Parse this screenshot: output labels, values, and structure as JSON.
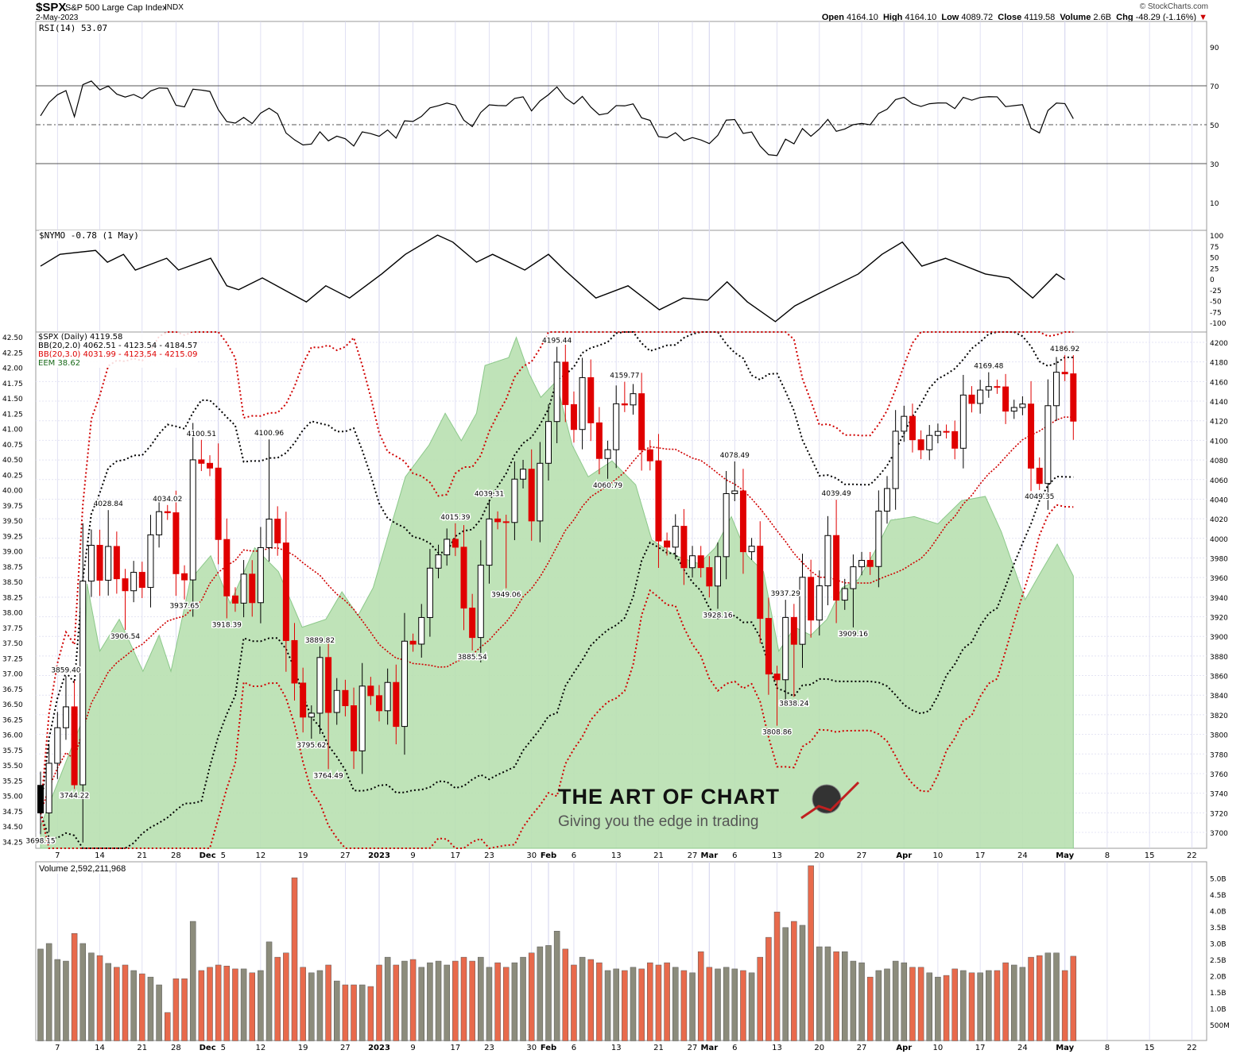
{
  "header": {
    "symbol": "$SPX",
    "name": "S&P 500 Large Cap Index",
    "exchange": "INDX",
    "date": "2-May-2023",
    "watermark": "© StockCharts.com",
    "open_label": "Open",
    "open": "4164.10",
    "high_label": "High",
    "high": "4164.10",
    "low_label": "Low",
    "low": "4089.72",
    "close_label": "Close",
    "close": "4119.58",
    "volume_label": "Volume",
    "volume": "2.6B",
    "chg_label": "Chg",
    "chg": "-48.29 (-1.16%)"
  },
  "colors": {
    "up": "#000000",
    "down": "#e00000",
    "bb2": "#000000",
    "bb3": "#d00000",
    "eem_fill": "#b8e0b0",
    "eem_line": "#8cc88a",
    "vol_up": "#8c8c7c",
    "vol_down": "#e86a4c",
    "grid": "#d8d8f0"
  },
  "logo": {
    "title": "THE ART OF CHART",
    "tagline": "Giving you the edge in trading"
  },
  "chart_data": [
    {
      "type": "line",
      "title": "RSI(14) 53.07",
      "ylim": [
        0,
        100
      ],
      "ticks": [
        90,
        70,
        50,
        30,
        10
      ],
      "period": 14
    },
    {
      "type": "line",
      "title": "$NYMO -0.78 (1 May)",
      "ylim": [
        -100,
        100
      ],
      "ticks": [
        100,
        75,
        50,
        25,
        0,
        -25,
        -50,
        -75,
        -100
      ],
      "points": [
        [
          0,
          29
        ],
        [
          2.3,
          56
        ],
        [
          6.5,
          65
        ],
        [
          7.9,
          38
        ],
        [
          9.8,
          56
        ],
        [
          11.2,
          20
        ],
        [
          14.9,
          47
        ],
        [
          16.3,
          20
        ],
        [
          20.1,
          47
        ],
        [
          22,
          -16
        ],
        [
          23.4,
          -25
        ],
        [
          26.2,
          2
        ],
        [
          31.4,
          -53
        ],
        [
          33.7,
          -16
        ],
        [
          36.5,
          -44
        ],
        [
          40.3,
          11
        ],
        [
          43.1,
          56
        ],
        [
          46.9,
          100
        ],
        [
          48.7,
          84
        ],
        [
          51.5,
          38
        ],
        [
          53.4,
          56
        ],
        [
          57.2,
          20
        ],
        [
          60,
          56
        ],
        [
          61.9,
          20
        ],
        [
          65.6,
          -44
        ],
        [
          69.4,
          -16
        ],
        [
          73.1,
          -71
        ],
        [
          75.9,
          -44
        ],
        [
          78.8,
          -49
        ],
        [
          81.1,
          -7
        ],
        [
          83.5,
          -53
        ],
        [
          86.8,
          -98
        ],
        [
          89.1,
          -62
        ],
        [
          91.9,
          -34
        ],
        [
          96.6,
          11
        ],
        [
          99.4,
          56
        ],
        [
          101.8,
          84
        ],
        [
          104.1,
          29
        ],
        [
          106.9,
          47
        ],
        [
          111.6,
          11
        ],
        [
          114.4,
          2
        ],
        [
          117.2,
          -44
        ],
        [
          120,
          11
        ],
        [
          121,
          -2
        ]
      ]
    },
    {
      "type": "candlestick",
      "title": "$SPX (Daily) 4119.58",
      "bb2_legend": "BB(20,2.0) 4062.51 - 4123.54 - 4184.57",
      "bb3_legend": "BB(20,3.0) 4031.99 - 4123.54 - 4215.09",
      "eem_legend": "EEM 38.62",
      "ylim": [
        3680,
        4210
      ],
      "price_ticks_step": 20,
      "eem_ticks": [
        42.5,
        42.25,
        42.0,
        41.75,
        41.5,
        41.25,
        41.0,
        40.75,
        40.5,
        40.25,
        40.0,
        39.75,
        39.5,
        39.25,
        39.0,
        38.75,
        38.5,
        38.25,
        38.0,
        37.75,
        37.5,
        37.25,
        37.0,
        36.75,
        36.5,
        36.25,
        36.0,
        35.75,
        35.5,
        35.25,
        35.0,
        34.75,
        34.5,
        34.25
      ],
      "closes": [
        3719.89,
        3770.55,
        3806.8,
        3828.11,
        3748.57,
        3956.37,
        3992.93,
        3957.25,
        3991.73,
        3958.79,
        3946.56,
        3965.34,
        3949.94,
        4003.58,
        4027.26,
        4026.12,
        3963.94,
        3957.63,
        4080.11,
        4076.57,
        4071.7,
        3998.84,
        3941.26,
        3933.92,
        3963.51,
        3934.38,
        3990.56,
        4019.65,
        3995.32,
        3895.75,
        3852.36,
        3817.66,
        3821.62,
        3878.44,
        3822.39,
        3844.82,
        3829.25,
        3783.22,
        3849.28,
        3839.5,
        3824.14,
        3852.97,
        3808.1,
        3895.08,
        3892.09,
        3919.25,
        3969.61,
        3983.17,
        3999.09,
        3990.97,
        3928.86,
        3898.85,
        3972.61,
        4019.81,
        4016.95,
        4016.22,
        4060.43,
        4070.56,
        4017.77,
        4076.6,
        4119.21,
        4179.76,
        4136.48,
        4111.08,
        4164.0,
        4117.86,
        4081.5,
        4090.46,
        4137.29,
        4136.13,
        4147.6,
        4090.41,
        4079.09,
        3997.34,
        3991.05,
        4012.32,
        3970.04,
        3982.24,
        3970.15,
        3951.39,
        3981.35,
        4045.64,
        4048.42,
        3986.37,
        3992.01,
        3918.32,
        3861.59,
        3855.76,
        3919.29,
        3891.93,
        3960.28,
        3916.64,
        3951.57,
        4002.87,
        3936.97,
        3948.72,
        3970.99,
        3977.53,
        3971.27,
        4027.81,
        4050.83,
        4109.31,
        4124.51,
        4100.6,
        4090.38,
        4105.02,
        4109.11,
        4108.94,
        4091.95,
        4146.22,
        4137.64,
        4151.32,
        4154.87,
        4154.52,
        4129.79,
        4133.52,
        4137.04,
        4071.63,
        4055.99,
        4135.35,
        4169.48,
        4167.87,
        4119.58
      ],
      "labels": [
        [
          "3698.15",
          0,
          "low"
        ],
        [
          "3744.22",
          4,
          "low"
        ],
        [
          "3859.40",
          3,
          "high"
        ],
        [
          "3906.54",
          10,
          "low"
        ],
        [
          "4028.84",
          8,
          "high"
        ],
        [
          "4034.02",
          15,
          "high"
        ],
        [
          "3937.65",
          17,
          "low"
        ],
        [
          "4100.51",
          19,
          "high"
        ],
        [
          "3918.39",
          22,
          "low"
        ],
        [
          "4100.96",
          27,
          "high"
        ],
        [
          "3889.82",
          33,
          "high"
        ],
        [
          "3795.62",
          32,
          "low"
        ],
        [
          "3764.49",
          34,
          "low"
        ],
        [
          "4015.39",
          49,
          "high"
        ],
        [
          "3885.54",
          51,
          "low"
        ],
        [
          "4039.31",
          53,
          "high"
        ],
        [
          "3949.06",
          55,
          "low"
        ],
        [
          "4195.44",
          61,
          "high"
        ],
        [
          "4159.77",
          69,
          "high"
        ],
        [
          "4060.79",
          67,
          "low"
        ],
        [
          "4078.49",
          82,
          "high"
        ],
        [
          "3928.16",
          80,
          "low"
        ],
        [
          "3937.29",
          88,
          "high"
        ],
        [
          "3838.24",
          89,
          "low"
        ],
        [
          "3808.86",
          87,
          "low"
        ],
        [
          "4039.49",
          94,
          "high"
        ],
        [
          "3909.16",
          96,
          "low"
        ],
        [
          "4169.48",
          112,
          "high"
        ],
        [
          "4049.35",
          118,
          "low"
        ],
        [
          "4186.92",
          121,
          "high"
        ]
      ],
      "eem": [
        [
          0,
          34.5
        ],
        [
          5,
          36.25
        ],
        [
          5.5,
          38.46
        ],
        [
          7,
          37.36
        ],
        [
          9.3,
          37.88
        ],
        [
          12.1,
          37.03
        ],
        [
          14,
          37.62
        ],
        [
          15.4,
          37.03
        ],
        [
          17.7,
          38.53
        ],
        [
          20.1,
          38.92
        ],
        [
          22.4,
          38.14
        ],
        [
          25.3,
          39.05
        ],
        [
          28.1,
          38.66
        ],
        [
          30.9,
          37.75
        ],
        [
          33.7,
          37.88
        ],
        [
          35.6,
          38.33
        ],
        [
          37.5,
          37.94
        ],
        [
          39.3,
          38.4
        ],
        [
          41.2,
          39.31
        ],
        [
          43.1,
          40.21
        ],
        [
          45.9,
          40.73
        ],
        [
          47.8,
          41.25
        ],
        [
          49.7,
          40.8
        ],
        [
          51.5,
          41.25
        ],
        [
          52.5,
          42.03
        ],
        [
          55.3,
          42.16
        ],
        [
          56.2,
          42.49
        ],
        [
          57.7,
          41.9
        ],
        [
          59.1,
          41.51
        ],
        [
          60.9,
          41.77
        ],
        [
          62.8,
          40.73
        ],
        [
          64.7,
          40.21
        ],
        [
          67.5,
          40.47
        ],
        [
          70.3,
          40.08
        ],
        [
          72.2,
          39.18
        ],
        [
          75,
          38.92
        ],
        [
          77.8,
          38.79
        ],
        [
          79.7,
          39.05
        ],
        [
          81.6,
          39.56
        ],
        [
          83.5,
          38.92
        ],
        [
          85.4,
          38.66
        ],
        [
          87.2,
          37.36
        ],
        [
          89.1,
          37.75
        ],
        [
          91,
          37.62
        ],
        [
          92.9,
          37.88
        ],
        [
          94.7,
          38.4
        ],
        [
          96.6,
          38.53
        ],
        [
          98.5,
          38.98
        ],
        [
          100.4,
          39.5
        ],
        [
          103.2,
          39.56
        ],
        [
          106,
          39.44
        ],
        [
          108.8,
          39.82
        ],
        [
          111.6,
          39.89
        ],
        [
          113.5,
          39.31
        ],
        [
          116.3,
          38.2
        ],
        [
          118.2,
          38.66
        ],
        [
          120.1,
          39.11
        ],
        [
          122,
          38.59
        ]
      ]
    },
    {
      "type": "bar",
      "title": "Volume 2,592,211,968",
      "unit": "B",
      "ticks": [
        [
          "5.0B",
          5
        ],
        [
          "4.5B",
          4.5
        ],
        [
          "4.0B",
          4
        ],
        [
          "3.5B",
          3.5
        ],
        [
          "3.0B",
          3
        ],
        [
          "2.5B",
          2.5
        ],
        [
          "2.0B",
          2
        ],
        [
          "1.5B",
          1.5
        ],
        [
          "1.0B",
          1
        ],
        [
          "500M",
          0.5
        ]
      ],
      "values": [
        2.82,
        2.99,
        2.5,
        2.45,
        3.3,
        2.99,
        2.7,
        2.62,
        2.38,
        2.26,
        2.33,
        2.16,
        2.06,
        1.96,
        1.72,
        0.87,
        1.91,
        1.91,
        3.67,
        2.16,
        2.26,
        2.33,
        2.3,
        2.21,
        2.21,
        2.09,
        2.16,
        3.04,
        2.57,
        2.7,
        5.01,
        2.26,
        2.09,
        2.16,
        2.33,
        1.84,
        1.72,
        1.72,
        1.72,
        1.67,
        2.33,
        2.57,
        2.33,
        2.45,
        2.5,
        2.26,
        2.4,
        2.45,
        2.33,
        2.45,
        2.57,
        2.45,
        2.57,
        2.26,
        2.4,
        2.26,
        2.4,
        2.57,
        2.7,
        2.89,
        2.93,
        3.37,
        2.82,
        2.33,
        2.57,
        2.5,
        2.4,
        2.16,
        2.21,
        2.16,
        2.26,
        2.21,
        2.4,
        2.33,
        2.4,
        2.26,
        2.16,
        2.09,
        2.74,
        2.26,
        2.21,
        2.26,
        2.21,
        2.16,
        2.09,
        2.57,
        3.18,
        3.96,
        3.48,
        3.67,
        3.55,
        5.38,
        2.89,
        2.89,
        2.74,
        2.74,
        2.45,
        2.4,
        1.96,
        2.16,
        2.21,
        2.45,
        2.4,
        2.26,
        2.26,
        2.09,
        1.96,
        2.01,
        2.21,
        2.16,
        2.09,
        2.09,
        2.16,
        2.16,
        2.4,
        2.33,
        2.26,
        2.57,
        2.62,
        2.7,
        2.7,
        2.16,
        2.6
      ]
    }
  ],
  "x_axis": [
    [
      "7",
      2
    ],
    [
      "14",
      7
    ],
    [
      "21",
      12
    ],
    [
      "28",
      16
    ],
    [
      "Dec",
      21,
      "b"
    ],
    [
      "5",
      21
    ],
    [
      "12",
      26
    ],
    [
      "19",
      31
    ],
    [
      "27",
      36
    ],
    [
      "2023",
      40,
      "b"
    ],
    [
      "9",
      44
    ],
    [
      "17",
      49
    ],
    [
      "23",
      53
    ],
    [
      "30",
      58
    ],
    [
      "Feb",
      60,
      "b"
    ],
    [
      "6",
      63
    ],
    [
      "13",
      68
    ],
    [
      "21",
      73
    ],
    [
      "27",
      77
    ],
    [
      "Mar",
      79,
      "b"
    ],
    [
      "6",
      82
    ],
    [
      "13",
      87
    ],
    [
      "20",
      92
    ],
    [
      "27",
      97
    ],
    [
      "Apr",
      102,
      "b"
    ],
    [
      "10",
      106
    ],
    [
      "17",
      111
    ],
    [
      "24",
      116
    ],
    [
      "May",
      121,
      "b"
    ],
    [
      "8",
      126
    ],
    [
      "15",
      131
    ],
    [
      "22",
      136
    ]
  ]
}
